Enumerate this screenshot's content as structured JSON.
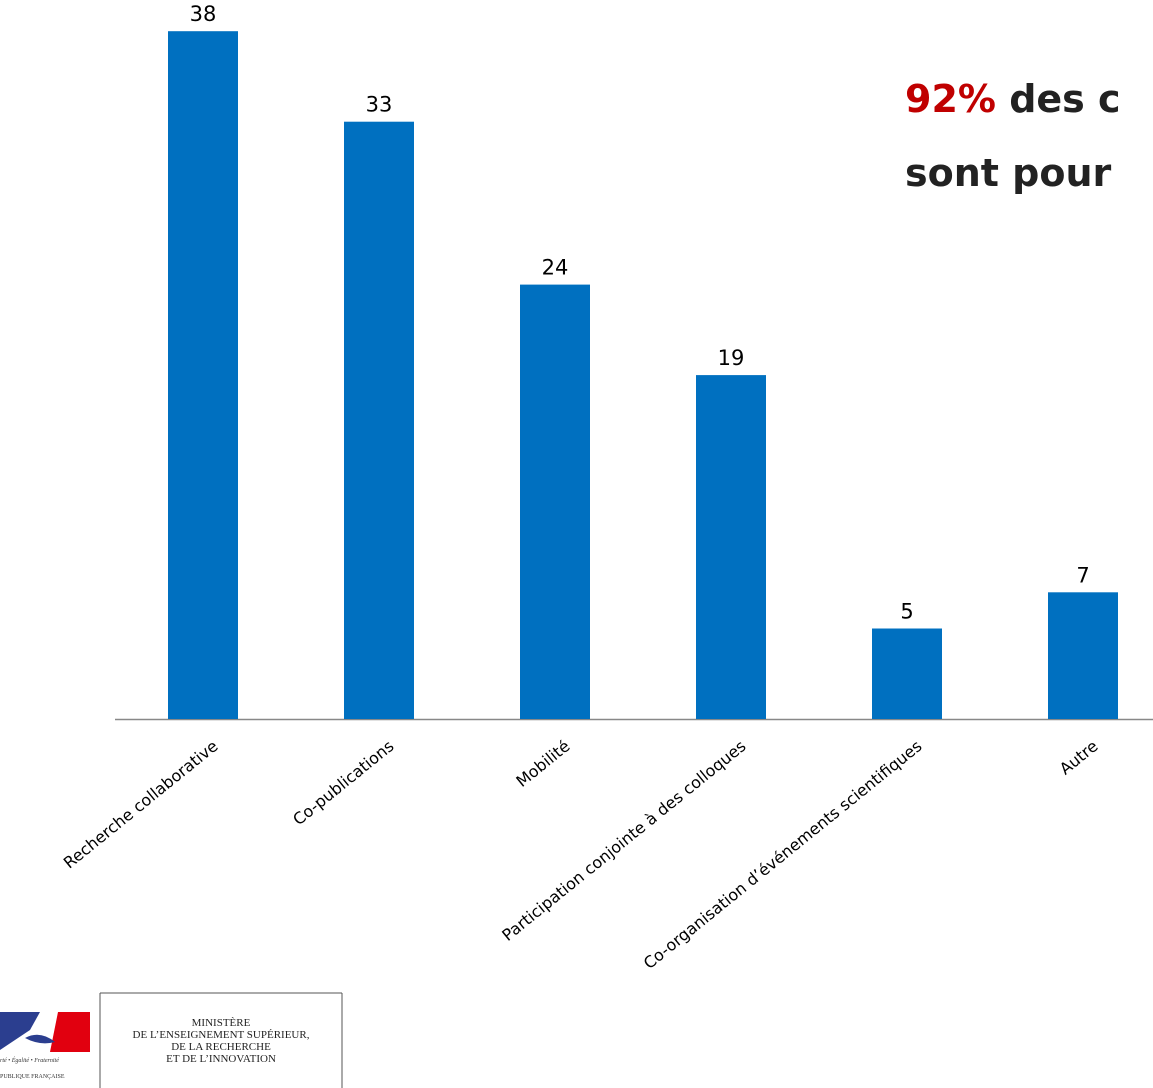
{
  "chart_data": {
    "type": "bar",
    "categories": [
      "Recherche collaborative",
      "Co-publications",
      "Mobilité",
      "Participation conjointe à des colloques",
      "Co-organisation d’événements scientifiques",
      "Autre"
    ],
    "values": [
      38,
      33,
      24,
      19,
      5,
      7
    ],
    "color": "#0070c0",
    "annotation": {
      "highlight": "92%",
      "line1": "des c",
      "line2": "sont pour",
      "highlight_color": "#c00000"
    }
  },
  "footer": {
    "motto": "rté • Égalité • Fraternité",
    "republic": "PUBLIQUE FRANÇAISE",
    "ministry": [
      "MINISTÈRE",
      "DE L’ENSEIGNEMENT SUPÉRIEUR,",
      "DE LA RECHERCHE",
      "ET DE L’INNOVATION"
    ]
  }
}
